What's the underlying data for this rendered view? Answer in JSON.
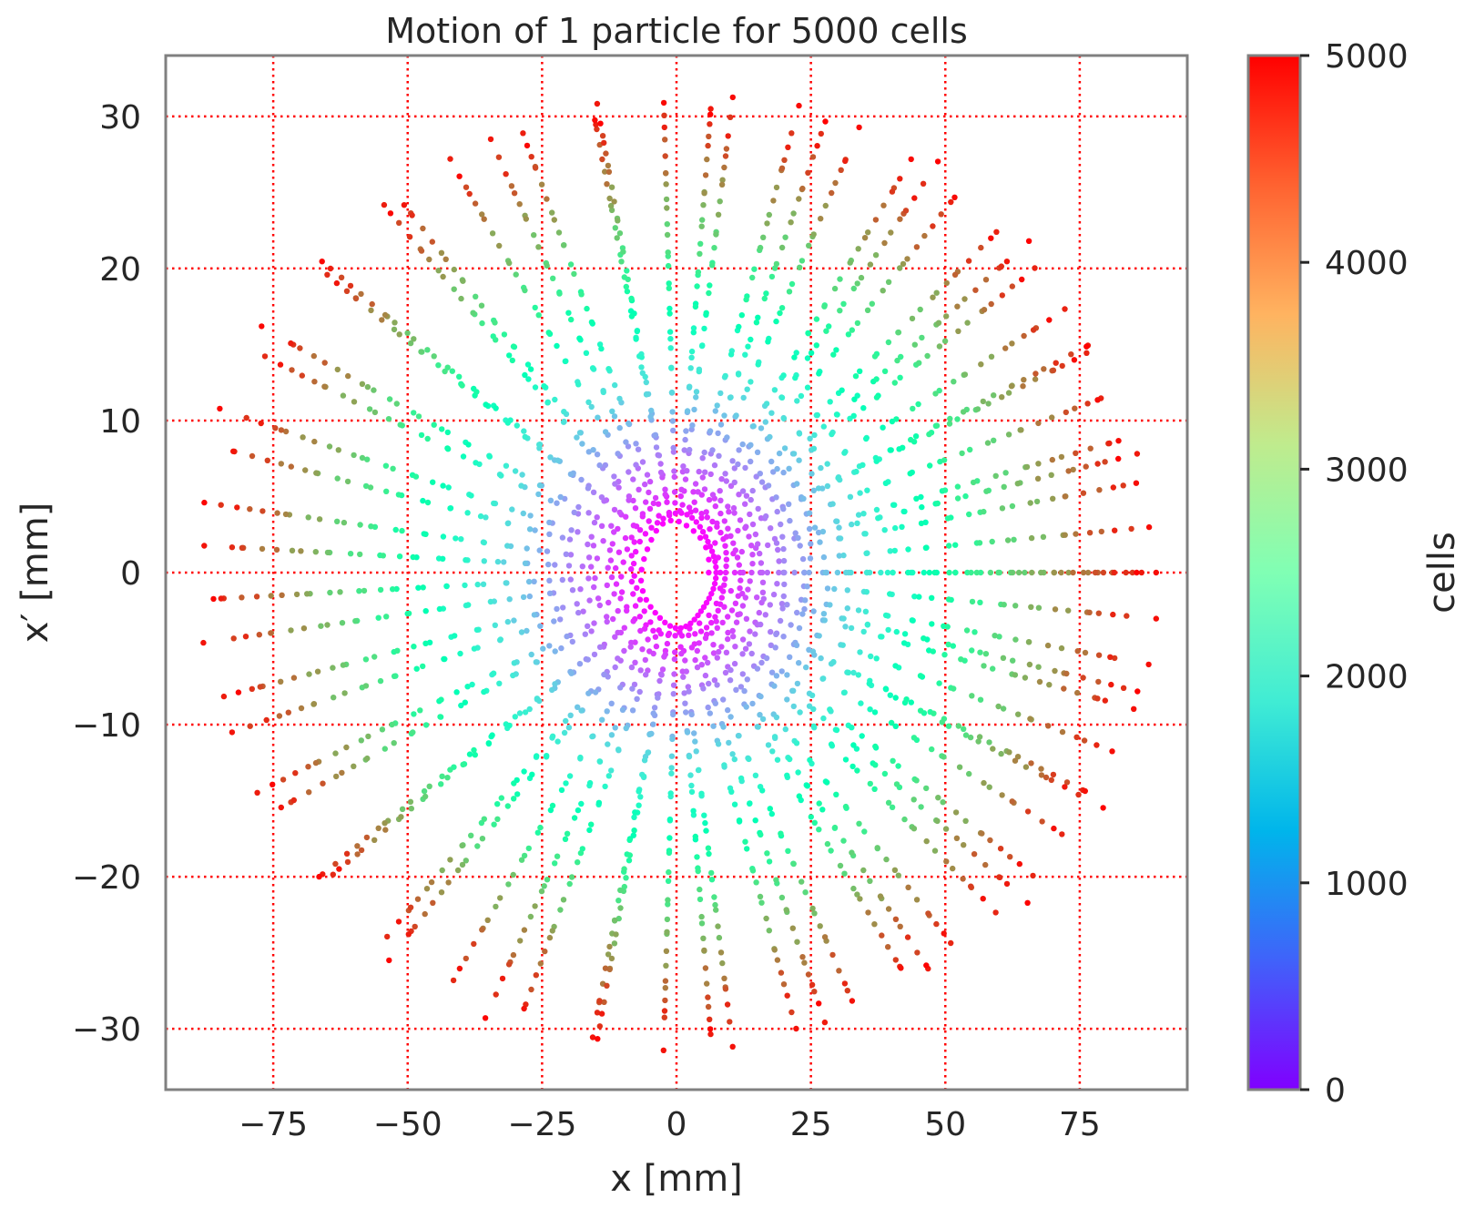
{
  "chart_data": {
    "type": "scatter",
    "title": "Motion of 1 particle for 5000 cells",
    "xlabel": "x [mm]",
    "ylabel": "x′ [mm]",
    "xlim": [
      -95,
      95
    ],
    "ylim": [
      -34,
      34
    ],
    "xticks": [
      -75,
      -50,
      -25,
      0,
      25,
      50,
      75
    ],
    "yticks": [
      -30,
      -20,
      -10,
      0,
      10,
      20,
      30
    ],
    "xtick_labels": [
      "−75",
      "−50",
      "−25",
      "0",
      "25",
      "50",
      "75"
    ],
    "ytick_labels": [
      "−30",
      "−20",
      "−10",
      "0",
      "10",
      "20",
      "30"
    ],
    "grid": true,
    "grid_color": "#ff0000",
    "grid_style": "dotted",
    "colormap": "rainbow",
    "colorbar": {
      "label": "cells",
      "range": [
        0,
        5000
      ],
      "ticks": [
        0,
        1000,
        2000,
        3000,
        4000,
        5000
      ],
      "tick_labels": [
        "0",
        "1000",
        "2000",
        "3000",
        "4000",
        "5000"
      ]
    },
    "series": [
      {
        "color_by": "cells",
        "cells_range": [
          0,
          5000
        ],
        "radius_x_range_mm": [
          6,
          88
        ],
        "radius_xp_range_mm": [
          3.3,
          31
        ],
        "points_per_turn": 36
      }
    ]
  }
}
